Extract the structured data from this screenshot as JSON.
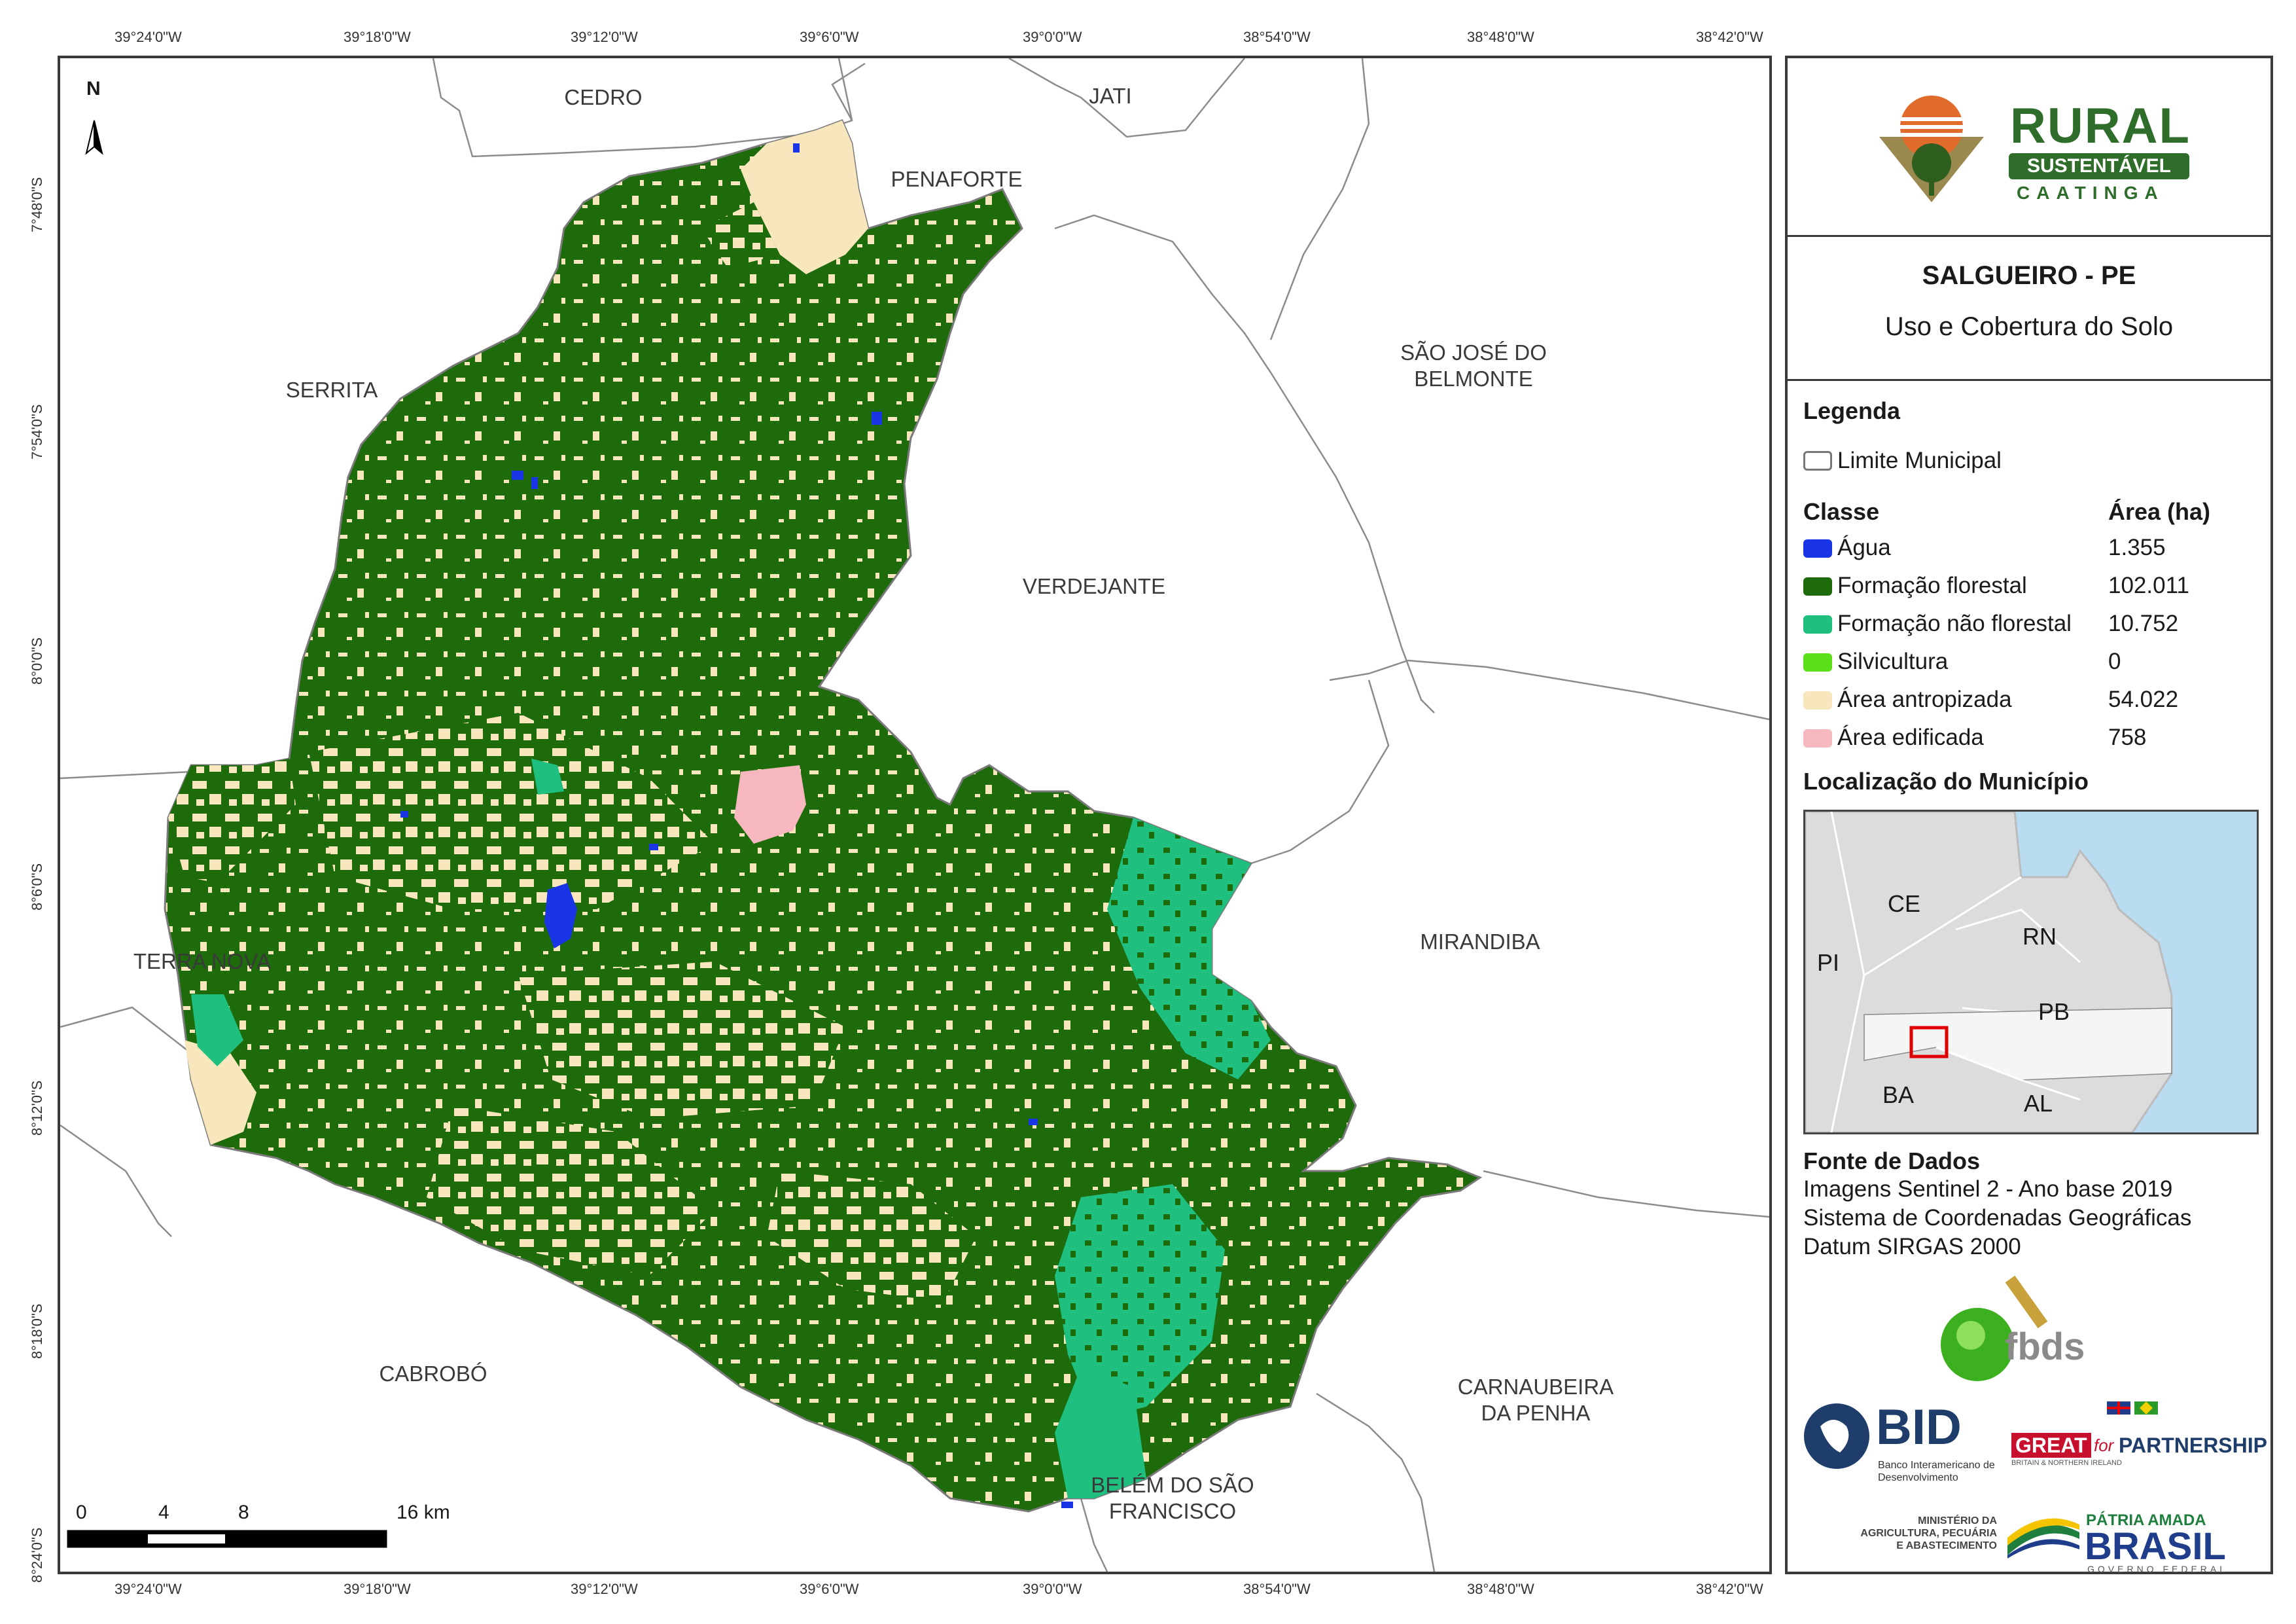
{
  "coords": {
    "x_top": [
      "39°24'0\"W",
      "39°18'0\"W",
      "39°12'0\"W",
      "39°6'0\"W",
      "39°0'0\"W",
      "38°54'0\"W",
      "38°48'0\"W",
      "38°42'0\"W"
    ],
    "x_bottom": [
      "39°24'0\"W",
      "39°18'0\"W",
      "39°12'0\"W",
      "39°6'0\"W",
      "39°0'0\"W",
      "38°54'0\"W",
      "38°48'0\"W",
      "38°42'0\"W"
    ],
    "y_left": [
      "7°48'0\"S",
      "7°54'0\"S",
      "8°0'0\"S",
      "8°6'0\"S",
      "8°12'0\"S",
      "8°18'0\"S",
      "8°24'0\"S"
    ]
  },
  "places": {
    "cedro": "CEDRO",
    "jati": "JATI",
    "penaforte": "PENAFORTE",
    "serrita": "SERRITA",
    "sao_jose": "SÃO JOSÉ DO\nBELMONTE",
    "verdejante": "VERDEJANTE",
    "terra_nova": "TERRA NOVA",
    "mirandiba": "MIRANDIBA",
    "cabrobo": "CABROBÓ",
    "carnaubeira": "CARNAUBEIRA\nDA PENHA",
    "belem": "BELÉM DO SÃO\nFRANCISCO"
  },
  "north_label": "N",
  "scale": {
    "labels": [
      "0",
      "4",
      "8",
      "16 km"
    ]
  },
  "logo": {
    "line1": "RURAL",
    "line2": "SUSTENTÁVEL",
    "line3": "CAATINGA"
  },
  "title": {
    "main": "SALGUEIRO - PE",
    "sub": "Uso e Cobertura do Solo"
  },
  "legend": {
    "heading": "Legenda",
    "limit_label": "Limite Municipal",
    "class_header": "Classe",
    "area_header": "Área (ha)",
    "classes": [
      {
        "label": "Água",
        "area": "1.355",
        "color": "#1a35e6"
      },
      {
        "label": "Formação florestal",
        "area": "102.011",
        "color": "#1e6b0c"
      },
      {
        "label": "Formação não florestal",
        "area": "10.752",
        "color": "#1fbf7f"
      },
      {
        "label": "Silvicultura",
        "area": "0",
        "color": "#5be01a"
      },
      {
        "label": "Área antropizada",
        "area": "54.022",
        "color": "#f8e7bd"
      },
      {
        "label": "Área edificada",
        "area": "758",
        "color": "#f6b8be"
      }
    ]
  },
  "location": {
    "heading": "Localização do Município",
    "states": {
      "ce": "CE",
      "rn": "RN",
      "pi": "PI",
      "pb": "PB",
      "ba": "BA",
      "al": "AL"
    }
  },
  "source": {
    "heading": "Fonte de Dados",
    "lines": [
      "Imagens Sentinel 2 - Ano base 2019",
      "Sistema de Coordenadas Geográficas",
      "Datum SIRGAS 2000"
    ]
  },
  "partners": {
    "fbds": "fbds",
    "bid": "BID",
    "bid_sub": "Banco Interamericano de Desenvolvimento",
    "great": "GREAT",
    "for": "for",
    "partnership": "PARTNERSHIP",
    "great_sub": "BRITAIN & NORTHERN IRELAND",
    "ministerio": "MINISTÉRIO DA\nAGRICULTURA, PECUÁRIA\nE ABASTECIMENTO",
    "patria": "PÁTRIA AMADA",
    "brasil": "BRASIL",
    "governo": "GOVERNO FEDERAL"
  }
}
